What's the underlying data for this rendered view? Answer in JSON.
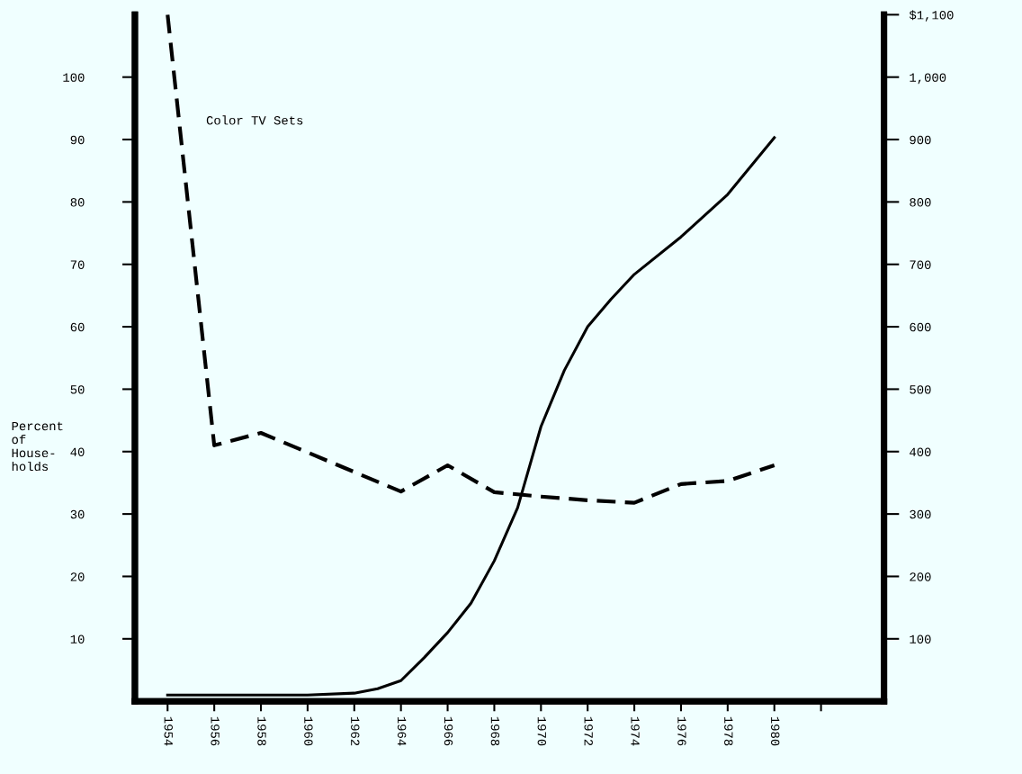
{
  "chart_data": {
    "type": "line",
    "x": [
      1954,
      1956,
      1958,
      1960,
      1962,
      1963,
      1964,
      1965,
      1966,
      1967,
      1968,
      1969,
      1970,
      1971,
      1972,
      1973,
      1974,
      1976,
      1978,
      1980
    ],
    "series": [
      {
        "color": "#000000",
        "line_style": "solid",
        "values": [
          1,
          1,
          1,
          1,
          1.3,
          2,
          3.3,
          7,
          11,
          15.7,
          22.5,
          31,
          44,
          53,
          60,
          64.4,
          68.4,
          74.4,
          81.2,
          90.3
        ]
      },
      {
        "color": "#000000",
        "line_style": "dashed",
        "axis": "y2",
        "x": [
          1954,
          1956,
          1958,
          1964,
          1966,
          1968,
          1970,
          1972,
          1974,
          1976,
          1978,
          1980
        ],
        "values": [
          1100,
          410,
          430,
          336,
          378,
          335,
          328,
          322,
          318,
          348,
          353,
          378
        ]
      }
    ],
    "ylabel": "Percent\nof\nHouse-\nholds",
    "annotations": [
      "Color TV Sets"
    ],
    "xlim": [
      1952.6,
      1984.7
    ],
    "xticks": [
      1954,
      1956,
      1958,
      1960,
      1962,
      1964,
      1966,
      1968,
      1970,
      1972,
      1974,
      1976,
      1978,
      1980,
      {
        "value": 1982,
        "label": null
      }
    ],
    "ylim": [
      0,
      110
    ],
    "yticks": [
      10,
      20,
      30,
      40,
      50,
      60,
      70,
      80,
      90,
      100
    ],
    "y2lim": [
      0,
      1100
    ],
    "y2ticks": [
      100,
      200,
      300,
      400,
      500,
      600,
      700,
      800,
      900,
      {
        "value": 1000,
        "label": "1,000"
      },
      {
        "value": 1100,
        "label": "$1,100"
      }
    ],
    "grid": false,
    "legend": false,
    "marker": "none"
  }
}
